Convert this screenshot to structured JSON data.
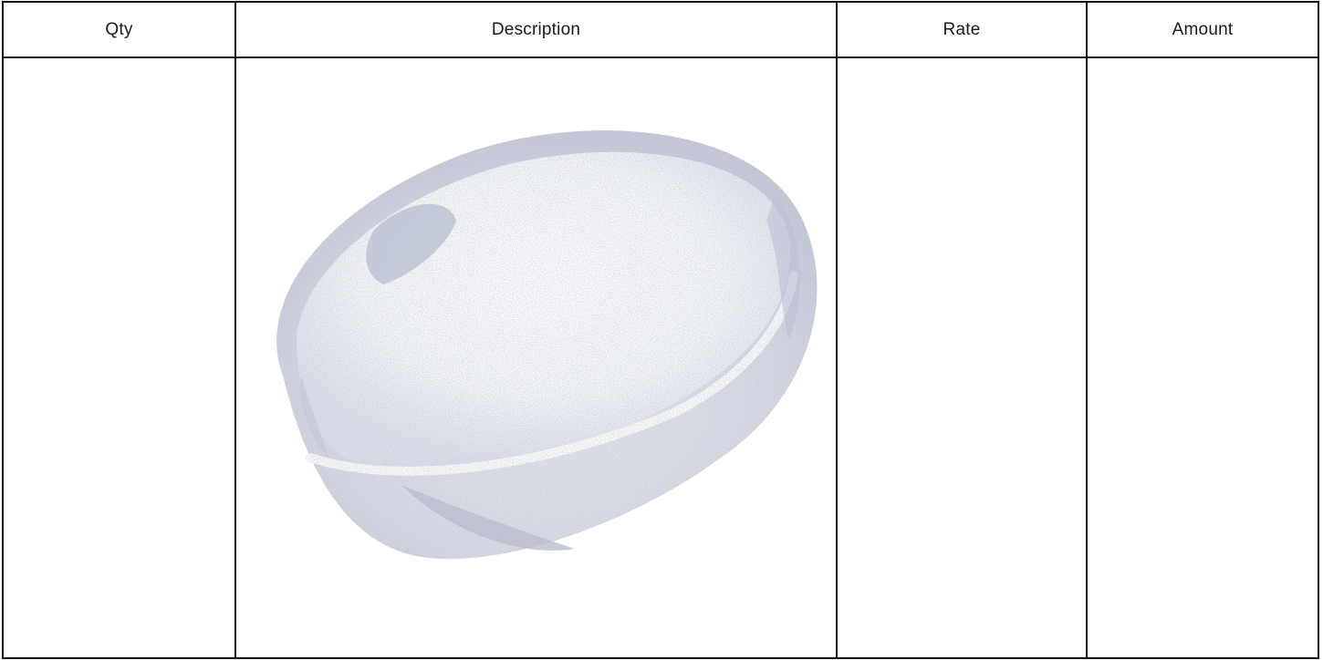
{
  "table": {
    "headers": {
      "qty": "Qty",
      "description": "Description",
      "rate": "Rate",
      "amount": "Amount"
    },
    "rows": [
      {
        "qty": "",
        "description": "",
        "rate": "",
        "amount": "",
        "image": "bowl-photo"
      }
    ]
  },
  "colors": {
    "border": "#111111",
    "image_tint": "#aab0c4"
  }
}
